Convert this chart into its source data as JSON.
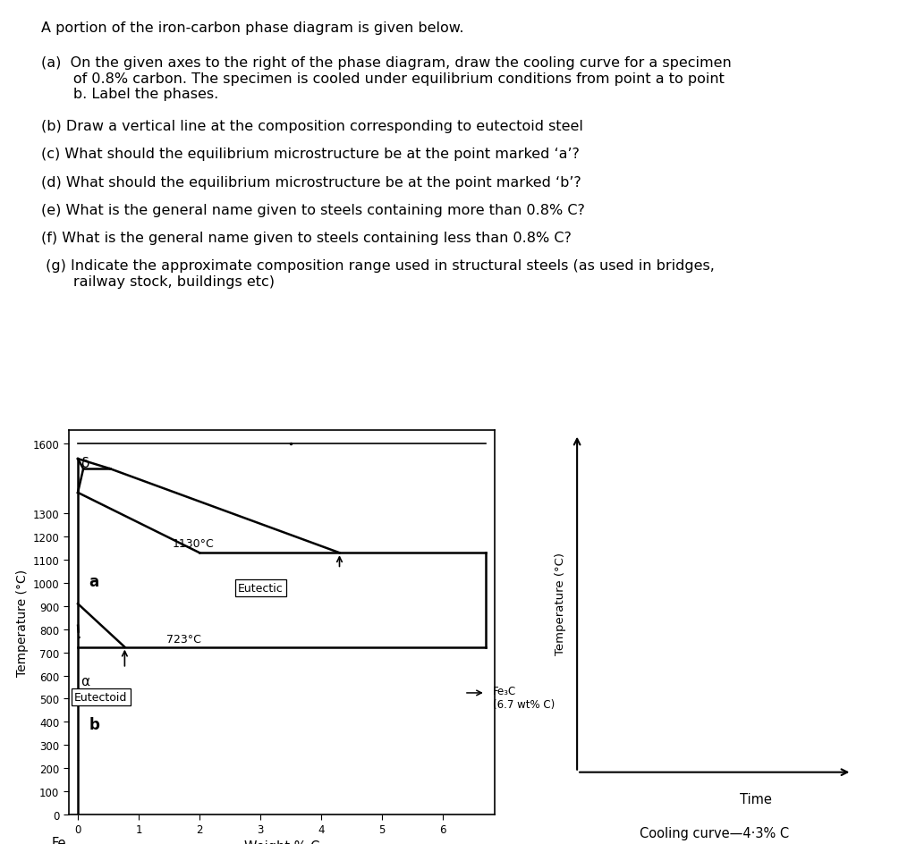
{
  "title": "A portion of the iron-carbon phase diagram is given below.",
  "q_a": "(a)  On the given axes to the right of the phase diagram, draw the cooling curve for a specimen\n       of 0.8% carbon. The specimen is cooled under equilibrium conditions from point a to point\n       b. Label the phases.",
  "q_b": "(b) Draw a vertical line at the composition corresponding to eutectoid steel",
  "q_c": "(c) What should the equilibrium microstructure be at the point marked ‘a’?",
  "q_d": "(d) What should the equilibrium microstructure be at the point marked ‘b’?",
  "q_e": "(e) What is the general name given to steels containing more than 0.8% C?",
  "q_f": "(f) What is the general name given to steels containing less than 0.8% C?",
  "q_g": " (g) Indicate the approximate composition range used in structural steels (as used in bridges,\n       railway stock, buildings etc)",
  "pd_xlim": [
    -0.15,
    6.85
  ],
  "pd_ylim": [
    0,
    1660
  ],
  "pd_yticks": [
    0,
    100,
    200,
    300,
    400,
    500,
    600,
    700,
    800,
    900,
    1000,
    1100,
    1200,
    1300,
    1600
  ],
  "pd_xticks": [
    0,
    1,
    2,
    3,
    4,
    5,
    6
  ],
  "pd_xlabel": "Weight % C",
  "pd_ylabel": "Temperature (°C)",
  "eutectic_T": 1130,
  "eutectoid_T": 723,
  "lw": 1.8,
  "color": "#000000",
  "cc_xlabel": "Time",
  "cc_ylabel": "Temperature (°C)",
  "cc_bottom_label": "Cooling curve—4·3% C",
  "text_fontsize": 11.5,
  "text_fontfamily": "DejaVu Sans",
  "annot_fontsize": 9.5
}
